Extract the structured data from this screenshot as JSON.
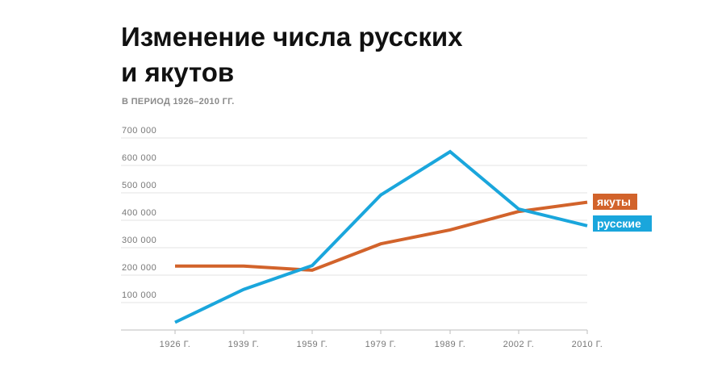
{
  "chart_data": {
    "type": "line",
    "title_lines": [
      "Изменение числа русских",
      "и якутов"
    ],
    "subtitle": "В ПЕРИОД 1926–2010 ГГ.",
    "x": [
      1926,
      1939,
      1959,
      1979,
      1989,
      2002,
      2010
    ],
    "x_tick_labels": [
      "1926 Г.",
      "1939 Г.",
      "1959 Г.",
      "1979 Г.",
      "1989 Г.",
      "2002 Г.",
      "2010 Г."
    ],
    "y_ticks": [
      100000,
      200000,
      300000,
      400000,
      500000,
      600000,
      700000
    ],
    "y_tick_labels": [
      "100 000",
      "200 000",
      "300 000",
      "400 000",
      "500 000",
      "600 000",
      "700 000"
    ],
    "ylim": [
      0,
      700000
    ],
    "grid": "horizontal",
    "series": [
      {
        "name": "якуты",
        "color": "#d2632b",
        "values": [
          233000,
          233000,
          218000,
          314000,
          365000,
          432000,
          466000
        ]
      },
      {
        "name": "русские",
        "color": "#1aa6dc",
        "values": [
          28000,
          148000,
          235000,
          492000,
          650000,
          441000,
          380000
        ]
      }
    ],
    "legend": "right, labels at line ends"
  }
}
